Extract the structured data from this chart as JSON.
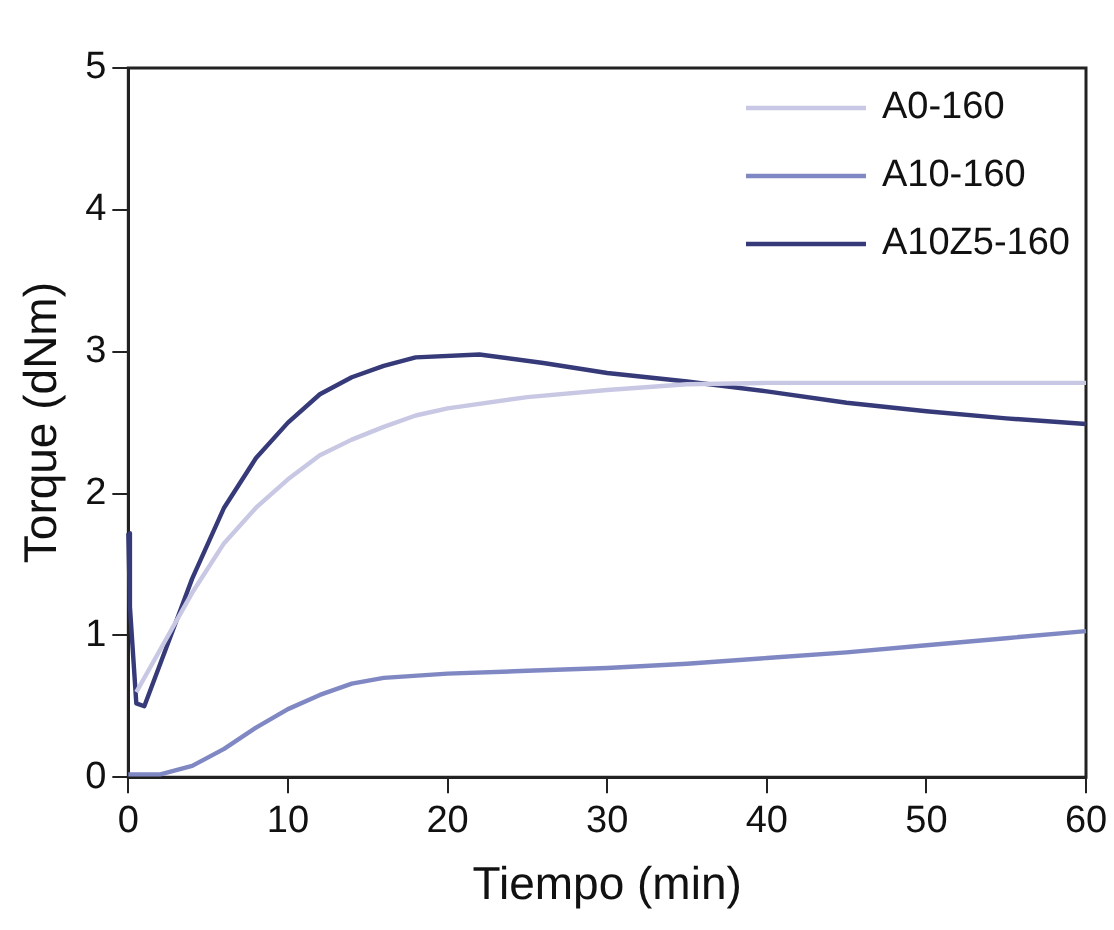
{
  "chart_data": {
    "type": "line",
    "xlabel": "Tiempo (min)",
    "ylabel": "Torque (dNm)",
    "xlim": [
      0,
      60
    ],
    "xticks": [
      0,
      10,
      20,
      30,
      40,
      50,
      60
    ],
    "ylim": [
      0,
      5
    ],
    "yticks": [
      0,
      1,
      2,
      3,
      4,
      5
    ],
    "grid": false,
    "legend": "top right",
    "marker": "none",
    "line_style": "solid",
    "series": [
      {
        "name": "A0-160",
        "color": "#c8c8e4",
        "x": [
          0.5,
          2,
          4,
          6,
          8,
          10,
          12,
          14,
          16,
          18,
          20,
          25,
          30,
          35,
          40,
          50,
          60
        ],
        "values": [
          0.6,
          0.9,
          1.3,
          1.65,
          1.9,
          2.1,
          2.27,
          2.38,
          2.47,
          2.55,
          2.6,
          2.68,
          2.73,
          2.77,
          2.78,
          2.78,
          2.78
        ]
      },
      {
        "name": "A10-160",
        "color": "#8088c4",
        "x": [
          0,
          2,
          4,
          6,
          8,
          10,
          12,
          14,
          16,
          20,
          25,
          30,
          35,
          40,
          45,
          50,
          55,
          60
        ],
        "values": [
          0.02,
          0.02,
          0.08,
          0.2,
          0.35,
          0.48,
          0.58,
          0.66,
          0.7,
          0.73,
          0.75,
          0.77,
          0.8,
          0.84,
          0.88,
          0.93,
          0.98,
          1.03
        ]
      },
      {
        "name": "A10Z5-160",
        "color": "#363a78",
        "x": [
          0,
          0.1,
          0.5,
          1,
          2,
          3,
          4,
          5,
          6,
          8,
          10,
          12,
          14,
          16,
          18,
          22,
          26,
          30,
          35,
          40,
          45,
          50,
          55,
          60
        ],
        "values": [
          1.72,
          1.2,
          0.52,
          0.5,
          0.8,
          1.1,
          1.4,
          1.65,
          1.9,
          2.25,
          2.5,
          2.7,
          2.82,
          2.9,
          2.96,
          2.98,
          2.92,
          2.85,
          2.79,
          2.72,
          2.64,
          2.58,
          2.53,
          2.49
        ]
      }
    ]
  }
}
